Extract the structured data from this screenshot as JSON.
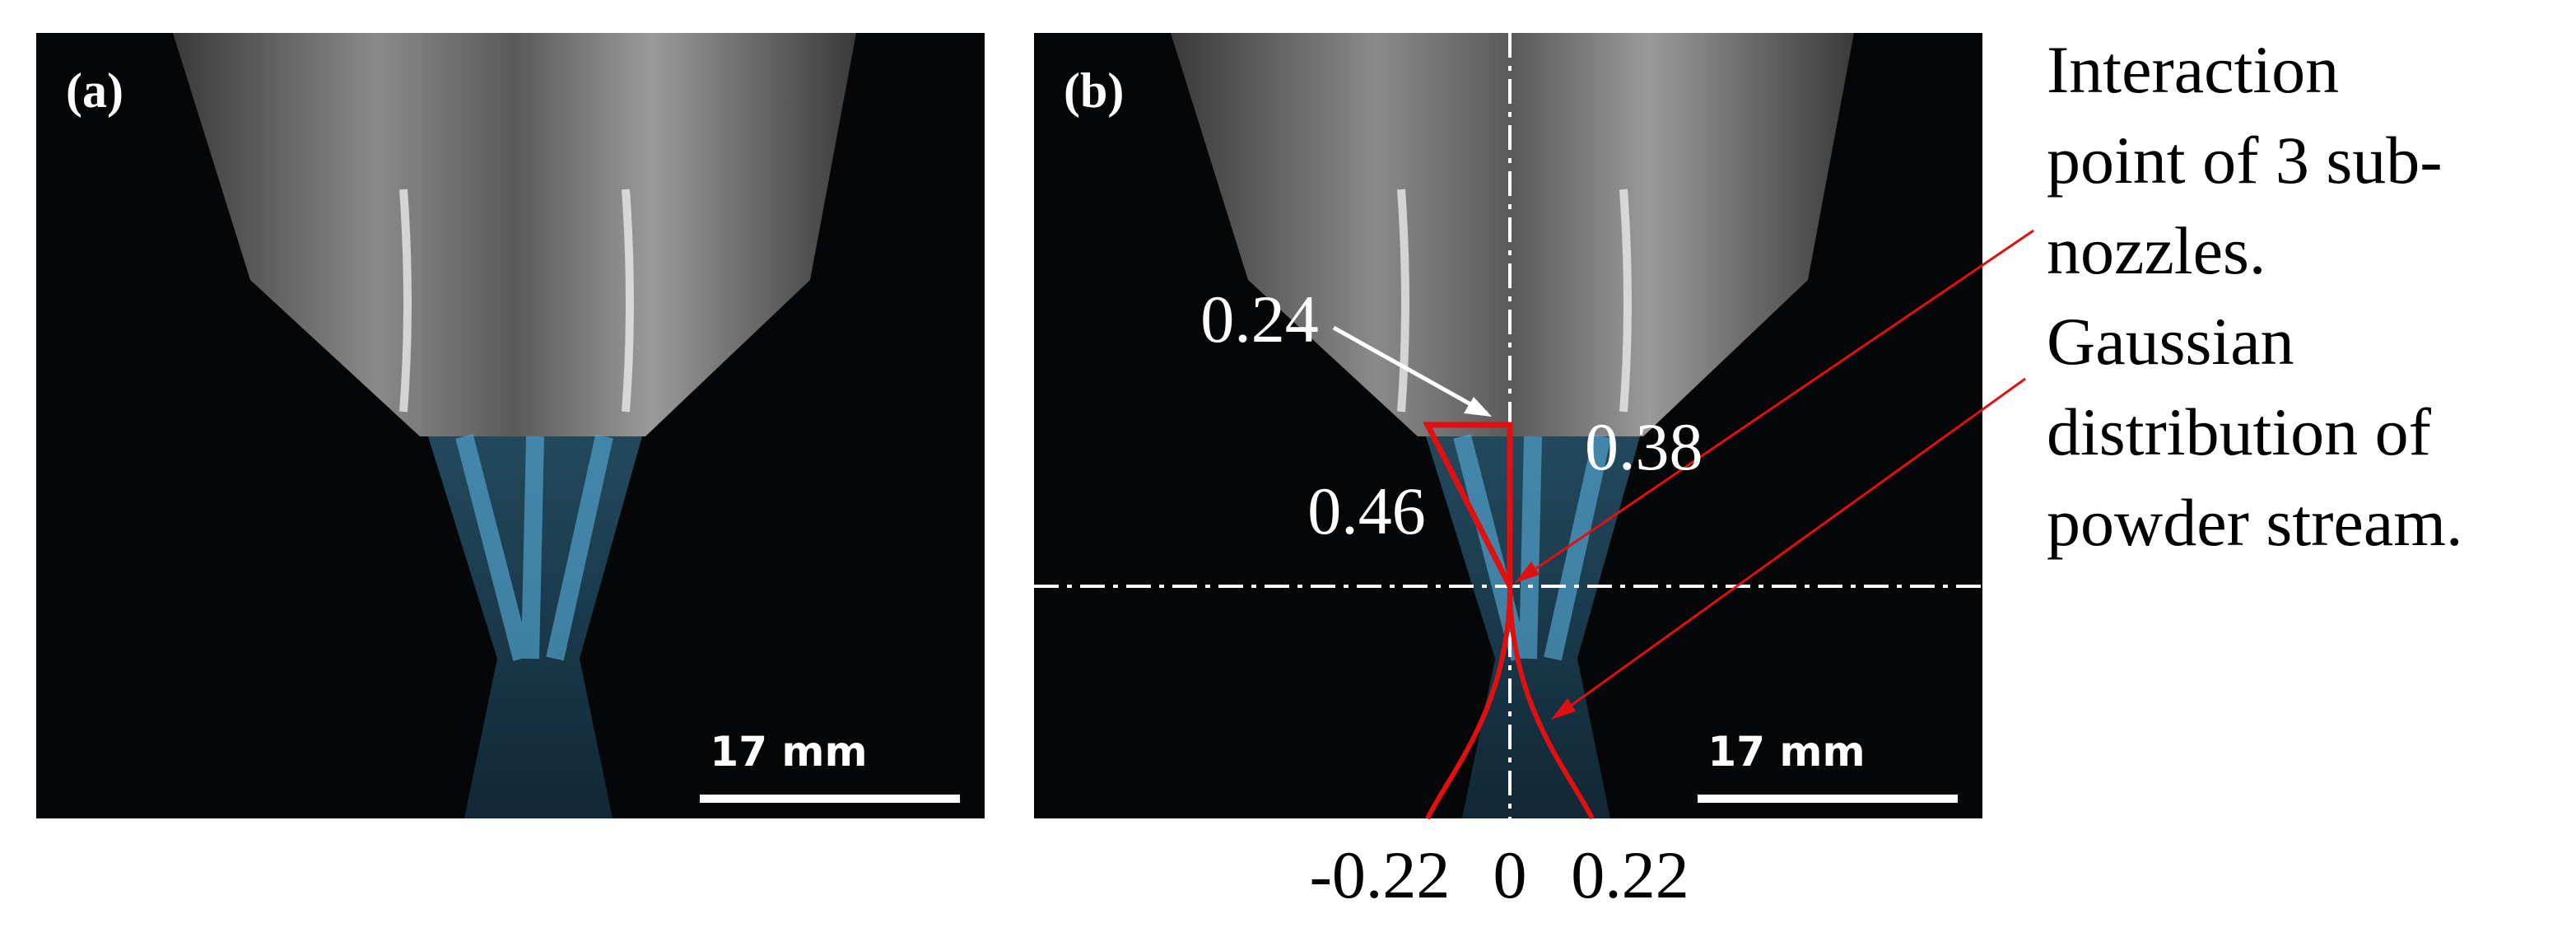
{
  "panels": [
    {
      "label": "(a)",
      "scale_bar": "17 mm"
    },
    {
      "label": "(b)",
      "scale_bar": "17 mm"
    }
  ],
  "annotations": {
    "top_width": "0.24",
    "right_edge": "0.38",
    "slant_edge": "0.46",
    "axis_labels": [
      "-0.22",
      "0",
      "0.22"
    ],
    "interaction_note": [
      "Interaction",
      "point of 3 sub-",
      "nozzles."
    ],
    "gaussian_note": [
      "Gaussian",
      "distribution of",
      "powder stream."
    ]
  }
}
